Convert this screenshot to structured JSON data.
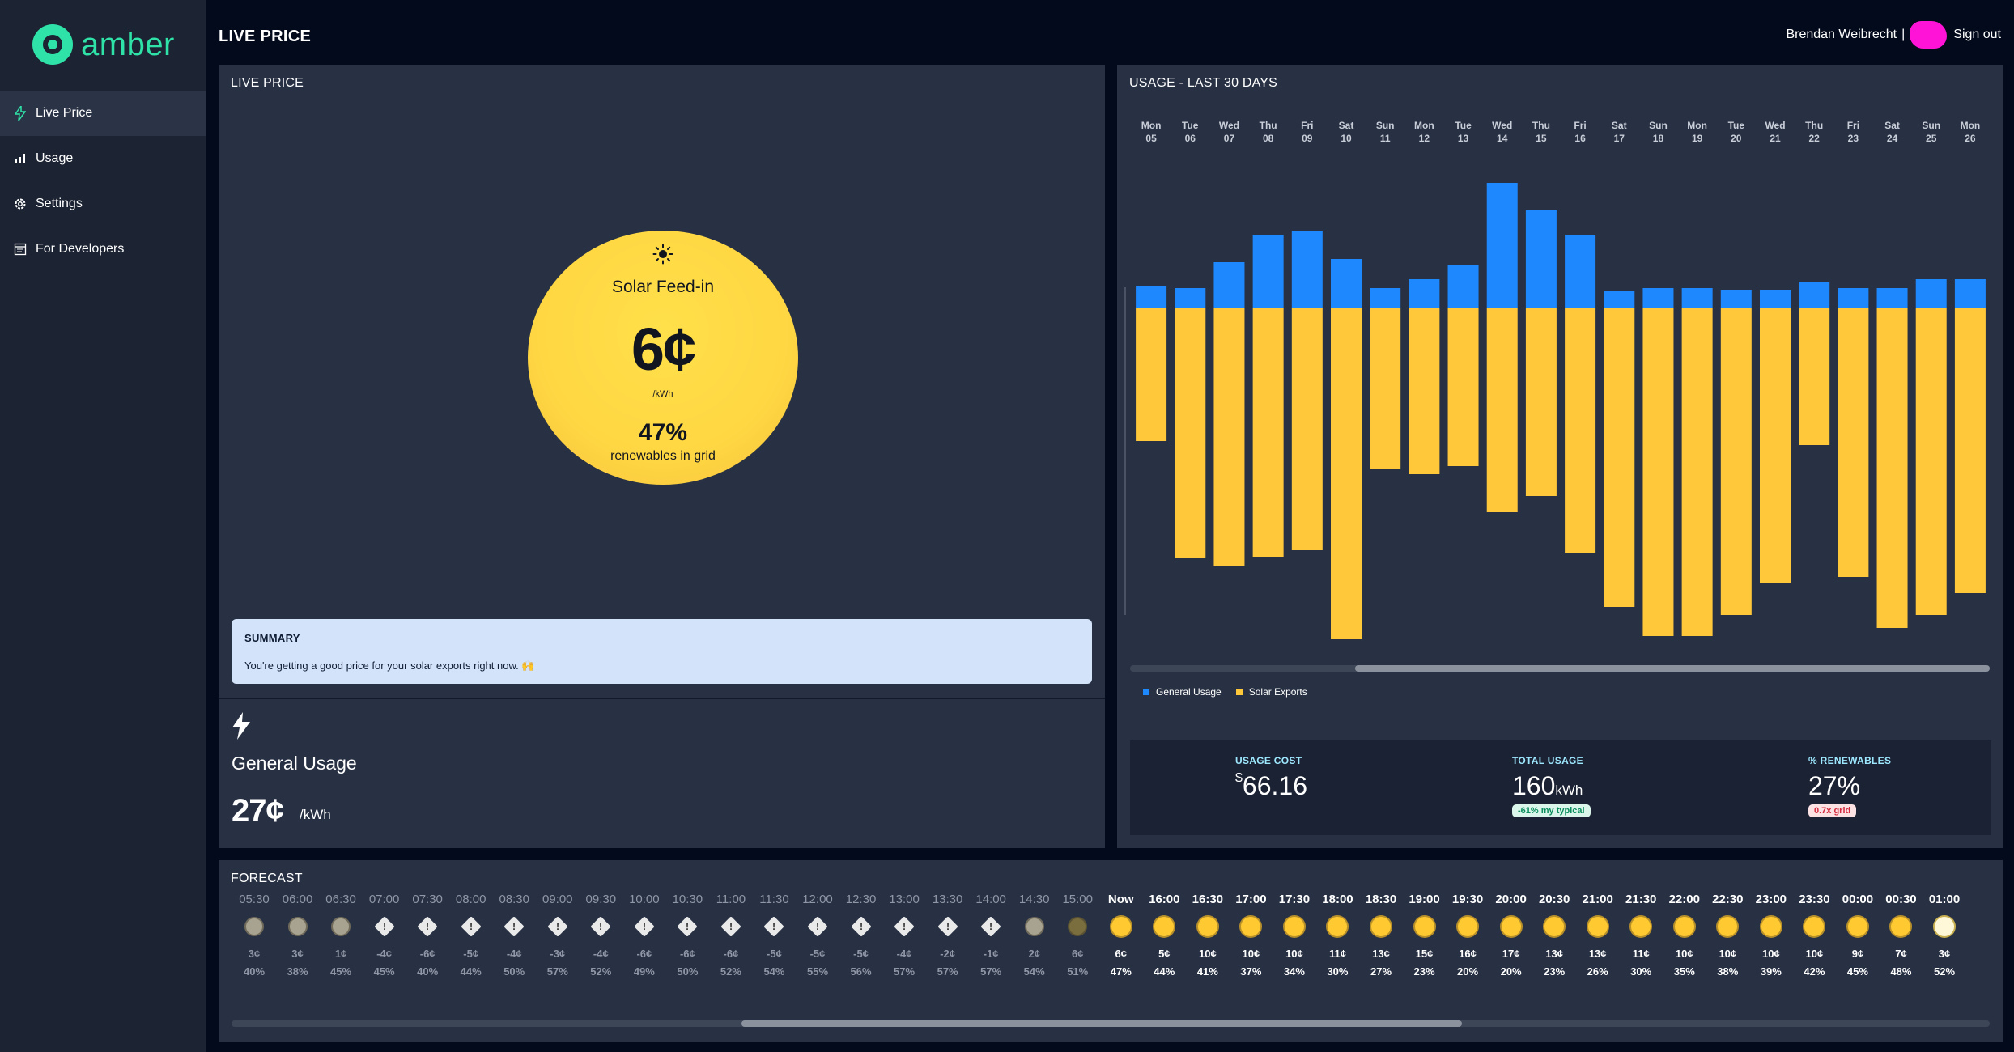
{
  "app": {
    "logo_text": "amber"
  },
  "sidebar": {
    "items": [
      {
        "label": "Live Price",
        "icon": "bolt-icon"
      },
      {
        "label": "Usage",
        "icon": "bar-chart-icon"
      },
      {
        "label": "Settings",
        "icon": "gear-icon"
      },
      {
        "label": "For Developers",
        "icon": "code-doc-icon"
      }
    ]
  },
  "header": {
    "title": "LIVE PRICE",
    "user_name": "Brendan Weibrecht",
    "separator": "|",
    "sign_out": "Sign out"
  },
  "live_price": {
    "panel_title": "LIVE PRICE",
    "feed_type": "Solar Feed-in",
    "price": "6¢",
    "unit": "/kWh",
    "renewables_pct": "47%",
    "renewables_label": "renewables in grid",
    "summary_heading": "SUMMARY",
    "summary_text": "You're getting a good price for your solar exports right now. 🙌",
    "general_label": "General Usage",
    "general_price": "27¢",
    "general_unit": "/kWh"
  },
  "usage": {
    "panel_title": "USAGE - LAST 30 DAYS",
    "legend": [
      {
        "label": "General Usage",
        "color": "#1e88ff"
      },
      {
        "label": "Solar Exports",
        "color": "#ffc73a"
      }
    ],
    "cost_label": "USAGE COST",
    "cost_currency": "$",
    "cost_value": "66.16",
    "total_label": "TOTAL USAGE",
    "total_value": "160",
    "total_unit": "kWh",
    "total_pill": "-61% my typical",
    "renew_label": "% RENEWABLES",
    "renew_value": "27%",
    "renew_pill": "0.7x grid"
  },
  "chart_data": {
    "type": "bar",
    "categories": [
      "Mon 05",
      "Tue 06",
      "Wed 07",
      "Thu 08",
      "Fri 09",
      "Sat 10",
      "Sun 11",
      "Mon 12",
      "Tue 13",
      "Wed 14",
      "Thu 15",
      "Fri 16",
      "Sat 17",
      "Sun 18",
      "Mon 19",
      "Tue 20",
      "Wed 21",
      "Thu 22",
      "Fri 23",
      "Sat 24",
      "Sun 25",
      "Mon 26"
    ],
    "series": [
      {
        "name": "General Usage",
        "color": "#1e88ff",
        "values": [
          2.7,
          2.4,
          5.6,
          9.0,
          9.5,
          6.0,
          2.4,
          3.5,
          5.2,
          15.4,
          12.0,
          9.0,
          2.0,
          2.4,
          2.4,
          2.2,
          2.2,
          3.2,
          2.4,
          2.4,
          3.5,
          3.5
        ]
      },
      {
        "name": "Solar Exports",
        "color": "#ffc73a",
        "values": [
          -16.5,
          -31.0,
          -32.0,
          -30.8,
          -30.0,
          -41.0,
          -20.0,
          -20.6,
          -19.6,
          -25.3,
          -23.3,
          -30.3,
          -37.0,
          -40.6,
          -40.6,
          -38.0,
          -34.0,
          -17.0,
          -33.3,
          -39.6,
          -38.0,
          -35.3
        ]
      }
    ],
    "ylim": [
      -42,
      16
    ]
  },
  "forecast": {
    "panel_title": "FORECAST",
    "items": [
      {
        "time": "05:30",
        "icon": "grey-dot",
        "price": "3¢",
        "pct": "40%",
        "state": "past"
      },
      {
        "time": "06:00",
        "icon": "grey-dot",
        "price": "3¢",
        "pct": "38%",
        "state": "past"
      },
      {
        "time": "06:30",
        "icon": "grey-dot",
        "price": "1¢",
        "pct": "45%",
        "state": "past"
      },
      {
        "time": "07:00",
        "icon": "warning",
        "price": "-4¢",
        "pct": "45%",
        "state": "past"
      },
      {
        "time": "07:30",
        "icon": "warning",
        "price": "-6¢",
        "pct": "40%",
        "state": "past"
      },
      {
        "time": "08:00",
        "icon": "warning",
        "price": "-5¢",
        "pct": "44%",
        "state": "past"
      },
      {
        "time": "08:30",
        "icon": "warning",
        "price": "-4¢",
        "pct": "50%",
        "state": "past"
      },
      {
        "time": "09:00",
        "icon": "warning",
        "price": "-3¢",
        "pct": "57%",
        "state": "past"
      },
      {
        "time": "09:30",
        "icon": "warning",
        "price": "-4¢",
        "pct": "52%",
        "state": "past"
      },
      {
        "time": "10:00",
        "icon": "warning",
        "price": "-6¢",
        "pct": "49%",
        "state": "past"
      },
      {
        "time": "10:30",
        "icon": "warning",
        "price": "-6¢",
        "pct": "50%",
        "state": "past"
      },
      {
        "time": "11:00",
        "icon": "warning",
        "price": "-6¢",
        "pct": "52%",
        "state": "past"
      },
      {
        "time": "11:30",
        "icon": "warning",
        "price": "-5¢",
        "pct": "54%",
        "state": "past"
      },
      {
        "time": "12:00",
        "icon": "warning",
        "price": "-5¢",
        "pct": "55%",
        "state": "past"
      },
      {
        "time": "12:30",
        "icon": "warning",
        "price": "-5¢",
        "pct": "56%",
        "state": "past"
      },
      {
        "time": "13:00",
        "icon": "warning",
        "price": "-4¢",
        "pct": "57%",
        "state": "past"
      },
      {
        "time": "13:30",
        "icon": "warning",
        "price": "-2¢",
        "pct": "57%",
        "state": "past"
      },
      {
        "time": "14:00",
        "icon": "warning",
        "price": "-1¢",
        "pct": "57%",
        "state": "past"
      },
      {
        "time": "14:30",
        "icon": "grey-dot",
        "price": "2¢",
        "pct": "54%",
        "state": "past"
      },
      {
        "time": "15:00",
        "icon": "olive-dot",
        "price": "6¢",
        "pct": "51%",
        "state": "past"
      },
      {
        "time": "Now",
        "icon": "gold-dot",
        "price": "6¢",
        "pct": "47%",
        "state": "future"
      },
      {
        "time": "16:00",
        "icon": "gold-dot",
        "price": "5¢",
        "pct": "44%",
        "state": "future"
      },
      {
        "time": "16:30",
        "icon": "gold-dot",
        "price": "10¢",
        "pct": "41%",
        "state": "future"
      },
      {
        "time": "17:00",
        "icon": "gold-dot",
        "price": "10¢",
        "pct": "37%",
        "state": "future"
      },
      {
        "time": "17:30",
        "icon": "gold-dot",
        "price": "10¢",
        "pct": "34%",
        "state": "future"
      },
      {
        "time": "18:00",
        "icon": "gold-dot",
        "price": "11¢",
        "pct": "30%",
        "state": "future"
      },
      {
        "time": "18:30",
        "icon": "gold-dot",
        "price": "13¢",
        "pct": "27%",
        "state": "future"
      },
      {
        "time": "19:00",
        "icon": "gold-dot",
        "price": "15¢",
        "pct": "23%",
        "state": "future"
      },
      {
        "time": "19:30",
        "icon": "gold-dot",
        "price": "16¢",
        "pct": "20%",
        "state": "future"
      },
      {
        "time": "20:00",
        "icon": "gold-dot",
        "price": "17¢",
        "pct": "20%",
        "state": "future"
      },
      {
        "time": "20:30",
        "icon": "gold-dot",
        "price": "13¢",
        "pct": "23%",
        "state": "future"
      },
      {
        "time": "21:00",
        "icon": "gold-dot",
        "price": "13¢",
        "pct": "26%",
        "state": "future"
      },
      {
        "time": "21:30",
        "icon": "gold-dot",
        "price": "11¢",
        "pct": "30%",
        "state": "future"
      },
      {
        "time": "22:00",
        "icon": "gold-dot",
        "price": "10¢",
        "pct": "35%",
        "state": "future"
      },
      {
        "time": "22:30",
        "icon": "gold-dot",
        "price": "10¢",
        "pct": "38%",
        "state": "future"
      },
      {
        "time": "23:00",
        "icon": "gold-dot",
        "price": "10¢",
        "pct": "39%",
        "state": "future"
      },
      {
        "time": "23:30",
        "icon": "gold-dot",
        "price": "10¢",
        "pct": "42%",
        "state": "future"
      },
      {
        "time": "00:00",
        "icon": "gold-dot",
        "price": "9¢",
        "pct": "45%",
        "state": "future"
      },
      {
        "time": "00:30",
        "icon": "gold-dot",
        "price": "7¢",
        "pct": "48%",
        "state": "future"
      },
      {
        "time": "01:00",
        "icon": "white-dot",
        "price": "3¢",
        "pct": "52%",
        "state": "future"
      }
    ]
  }
}
